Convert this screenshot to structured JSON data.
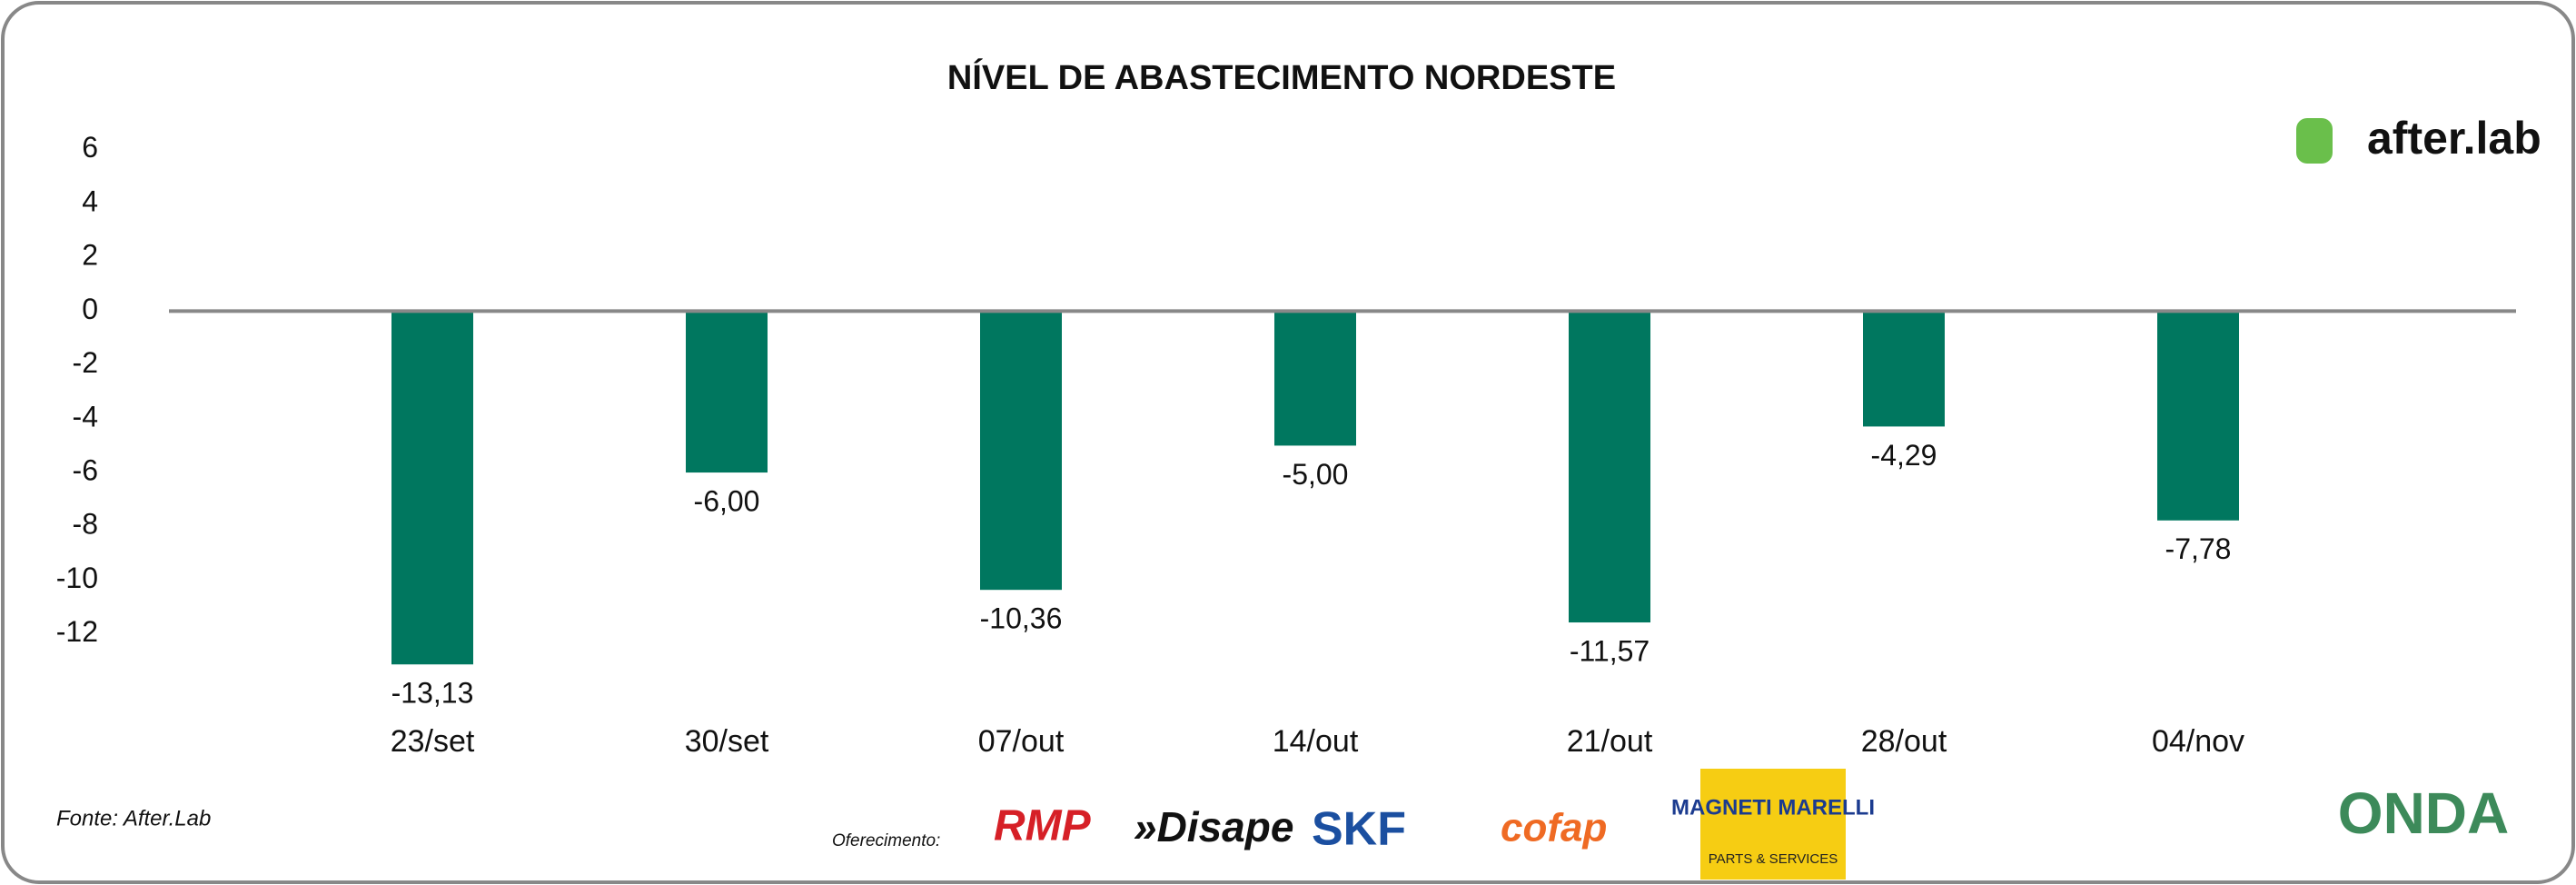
{
  "chart_data": {
    "type": "bar",
    "title": "NÍVEL DE ABASTECIMENTO NORDESTE",
    "categories": [
      "23/set",
      "30/set",
      "07/out",
      "14/out",
      "21/out",
      "28/out",
      "04/nov"
    ],
    "values": [
      -13.13,
      -6.0,
      -10.36,
      -5.0,
      -11.57,
      -4.29,
      -7.78
    ],
    "value_labels": [
      "-13,13",
      "-6,00",
      "-10,36",
      "-5,00",
      "-11,57",
      "-4,29",
      "-7,78"
    ],
    "color": "#00775f",
    "ylim": [
      -14,
      7
    ],
    "yticks": [
      6,
      4,
      2,
      0,
      -2,
      -4,
      -6,
      -8,
      -10,
      -12
    ],
    "grid": false,
    "source": "Fonte: After.Lab",
    "brand": "after.lab",
    "sponsors_label": "Oferecimento:",
    "sponsors": [
      "RMP",
      "»Disape",
      "SKF",
      "cofap",
      "MAGNETI MARELLI",
      "PARTS & SERVICES"
    ],
    "partner": "ONDA"
  }
}
